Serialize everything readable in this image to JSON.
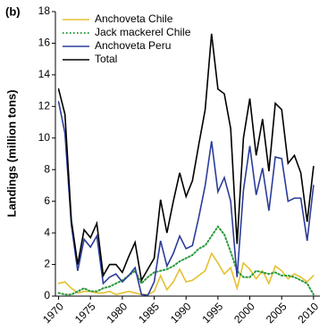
{
  "chart_data": {
    "type": "line",
    "panel_label": "(b)",
    "ylabel": "Landings (million tons)",
    "x": [
      1970,
      1971,
      1972,
      1973,
      1974,
      1975,
      1976,
      1977,
      1978,
      1979,
      1980,
      1981,
      1982,
      1983,
      1984,
      1985,
      1986,
      1987,
      1988,
      1989,
      1990,
      1991,
      1992,
      1993,
      1994,
      1995,
      1996,
      1997,
      1998,
      1999,
      2000,
      2001,
      2002,
      2003,
      2004,
      2005,
      2006,
      2007,
      2008,
      2009,
      2010
    ],
    "series": [
      {
        "name": "Anchoveta Chile",
        "color": "#e6c02e",
        "dash": "solid",
        "values": [
          0.8,
          0.9,
          0.5,
          0.2,
          0.3,
          0.3,
          0.2,
          0.2,
          0.3,
          0.1,
          0.2,
          0.3,
          0.2,
          0.1,
          0.1,
          0.3,
          1.3,
          0.4,
          0.9,
          1.7,
          0.9,
          1.0,
          1.3,
          1.6,
          2.7,
          2.1,
          1.4,
          1.8,
          0.5,
          2.1,
          1.7,
          1.1,
          1.6,
          0.8,
          1.9,
          1.6,
          1.1,
          1.4,
          1.2,
          0.9,
          1.3
        ]
      },
      {
        "name": "Jack mackerel Chile",
        "color": "#2a9a3a",
        "dash": "dotted",
        "values": [
          0.2,
          0.1,
          0.1,
          0.3,
          0.5,
          0.3,
          0.3,
          0.5,
          0.6,
          0.8,
          1.0,
          1.3,
          1.6,
          0.8,
          1.2,
          1.5,
          1.6,
          1.7,
          1.9,
          2.2,
          2.4,
          2.6,
          3.0,
          3.2,
          3.8,
          4.4,
          3.9,
          2.8,
          1.6,
          1.2,
          1.2,
          1.6,
          1.5,
          1.4,
          1.5,
          1.3,
          1.3,
          1.2,
          1.0,
          0.8,
          0.1
        ]
      },
      {
        "name": "Anchoveta Peru",
        "color": "#2b3d9a",
        "dash": "solid",
        "values": [
          12.3,
          10.3,
          4.5,
          1.6,
          3.6,
          3.1,
          3.8,
          0.8,
          1.2,
          1.4,
          0.9,
          1.3,
          1.8,
          0.1,
          0.05,
          0.9,
          3.5,
          1.9,
          2.7,
          3.8,
          3.0,
          3.2,
          5.0,
          7.0,
          9.8,
          6.6,
          7.5,
          6.0,
          1.2,
          6.7,
          9.5,
          6.4,
          8.1,
          5.4,
          8.8,
          8.7,
          6.0,
          6.2,
          6.2,
          3.5,
          7.0
        ]
      },
      {
        "name": "Total",
        "color": "#000000",
        "dash": "solid",
        "values": [
          13.1,
          11.5,
          4.8,
          2.0,
          4.2,
          3.7,
          4.6,
          1.3,
          2.0,
          2.0,
          1.5,
          2.5,
          3.4,
          1.0,
          1.7,
          2.4,
          6.1,
          4.0,
          6.0,
          7.8,
          6.3,
          7.3,
          9.6,
          11.8,
          16.6,
          13.1,
          12.8,
          10.6,
          3.3,
          10.0,
          12.5,
          8.9,
          11.2,
          7.9,
          12.2,
          11.8,
          8.4,
          8.9,
          7.8,
          4.7,
          8.2
        ]
      }
    ],
    "xlim": [
      1969.5,
      2011
    ],
    "xticks": [
      1970,
      1975,
      1980,
      1985,
      1990,
      1995,
      2000,
      2005,
      2010
    ],
    "ylim": [
      0,
      18
    ],
    "yticks": [
      0,
      2,
      4,
      6,
      8,
      10,
      12,
      14,
      16,
      18
    ],
    "legend": "upper left"
  }
}
